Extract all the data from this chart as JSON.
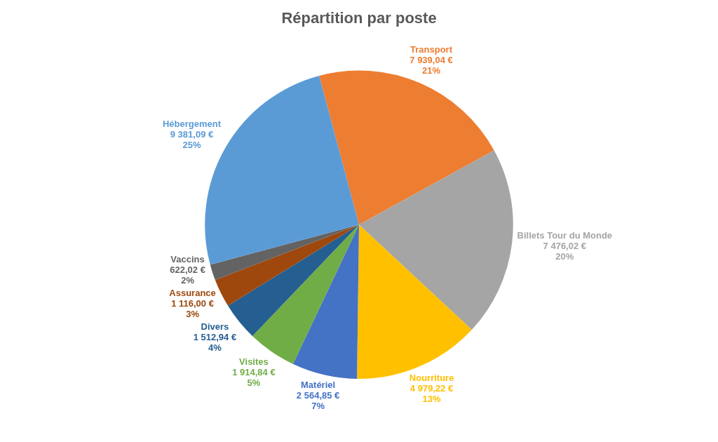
{
  "chart_data": {
    "type": "pie",
    "title": "Répartition par poste",
    "categories": [
      "Transport",
      "Billets Tour du Monde",
      "Nourriture",
      "Matériel",
      "Visites",
      "Divers",
      "Assurance",
      "Vaccins",
      "Hébergement"
    ],
    "values": [
      7939.04,
      7476.02,
      4979.22,
      2564.85,
      1914.84,
      1512.94,
      1116.0,
      622.02,
      9381.09
    ],
    "colors": [
      "#ed7d31",
      "#a5a5a5",
      "#ffc000",
      "#4472c4",
      "#70ad47",
      "#255e91",
      "#9e480e",
      "#636363",
      "#5b9bd5"
    ],
    "value_labels": [
      "7 939,04 €\n21%",
      "7 476,02 €\n20%",
      "4 979,22 €\n13%",
      "2 564,85 €\n7%",
      "1 914,84 €\n5%",
      "1 512,94 €\n4%",
      "1 116,00 €\n3%",
      "622,02 €\n2%",
      "9 381,09 €\n25%"
    ]
  }
}
